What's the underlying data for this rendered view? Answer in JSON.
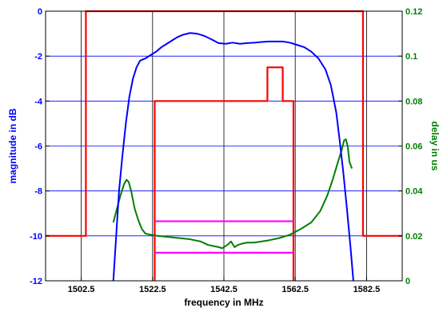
{
  "chart_data": {
    "type": "line",
    "title": "",
    "xlabel": "frequency in MHz",
    "ylabel_left": "magnitude in dB",
    "ylabel_right": "delay in us",
    "xlim": [
      1492.5,
      1592.5
    ],
    "ylim_left": [
      -12,
      0
    ],
    "ylim_right": [
      0,
      0.12
    ],
    "grid": true,
    "x_ticks": [
      1502.5,
      1522.5,
      1542.5,
      1562.5,
      1582.5
    ],
    "x_tick_labels": [
      "1502.5",
      "1522.5",
      "1542.5",
      "1562.5",
      "1582.5"
    ],
    "y_left_ticks": [
      0,
      -2,
      -4,
      -6,
      -8,
      -10,
      -12
    ],
    "y_left_tick_labels": [
      "0",
      "-2",
      "-4",
      "-6",
      "-8",
      "-10",
      "-12"
    ],
    "y_right_ticks": [
      0.12,
      0.1,
      0.08,
      0.06,
      0.04,
      0.02,
      0
    ],
    "y_right_tick_labels": [
      "0.12",
      "0.1",
      "0.08",
      "0.06",
      "0.04",
      "0.02",
      "0"
    ],
    "colors": {
      "magnitude": "#0000ff",
      "magnitude_mask": "#ff0000",
      "delay": "#007f00",
      "delay_mask": "#ff00ff",
      "left_axis_text": "#0000ff",
      "right_axis_text": "#007f00",
      "grid": "#000000"
    },
    "series": [
      {
        "key": "magnitude",
        "axis": "left",
        "x": [
          1511.5,
          1512.3,
          1513.1,
          1514.0,
          1515.0,
          1516.0,
          1517.0,
          1518.0,
          1519.0,
          1520.5,
          1522.0,
          1523.5,
          1525.0,
          1526.5,
          1528.0,
          1529.5,
          1531.0,
          1533.0,
          1535.0,
          1537.0,
          1539.0,
          1541.0,
          1543.0,
          1545.0,
          1547.0,
          1549.0,
          1551.0,
          1553.0,
          1555.0,
          1557.0,
          1559.0,
          1561.0,
          1563.0,
          1565.0,
          1567.0,
          1569.0,
          1571.0,
          1572.5,
          1574.0,
          1575.0,
          1576.0,
          1577.0,
          1578.0,
          1578.8
        ],
        "y": [
          -12.0,
          -10.0,
          -8.0,
          -6.5,
          -5.0,
          -3.8,
          -3.0,
          -2.5,
          -2.2,
          -2.1,
          -1.95,
          -1.8,
          -1.6,
          -1.45,
          -1.3,
          -1.15,
          -1.05,
          -0.97,
          -1.0,
          -1.1,
          -1.25,
          -1.42,
          -1.45,
          -1.4,
          -1.45,
          -1.42,
          -1.4,
          -1.37,
          -1.35,
          -1.35,
          -1.35,
          -1.4,
          -1.5,
          -1.6,
          -1.8,
          -2.1,
          -2.6,
          -3.3,
          -4.5,
          -5.8,
          -7.2,
          -8.8,
          -10.5,
          -12.0
        ]
      },
      {
        "key": "delay",
        "axis": "right",
        "x": [
          1511.5,
          1512.5,
          1513.5,
          1514.5,
          1515.2,
          1515.8,
          1516.5,
          1517.5,
          1518.5,
          1519.5,
          1520.5,
          1522.0,
          1524.0,
          1527.0,
          1530.0,
          1533.0,
          1536.0,
          1538.0,
          1539.5,
          1541.0,
          1542.0,
          1542.5,
          1543.5,
          1544.5,
          1545.5,
          1546.5,
          1547.5,
          1549.0,
          1551.0,
          1553.0,
          1555.0,
          1558.0,
          1561.0,
          1564.0,
          1567.0,
          1569.5,
          1571.5,
          1573.0,
          1574.5,
          1575.5,
          1576.2,
          1576.7,
          1577.2,
          1577.7,
          1578.4
        ],
        "y": [
          0.026,
          0.032,
          0.038,
          0.043,
          0.045,
          0.044,
          0.04,
          0.032,
          0.027,
          0.023,
          0.021,
          0.0205,
          0.02,
          0.0195,
          0.019,
          0.0185,
          0.0175,
          0.016,
          0.0155,
          0.015,
          0.0145,
          0.015,
          0.016,
          0.0175,
          0.015,
          0.016,
          0.0165,
          0.017,
          0.017,
          0.0175,
          0.018,
          0.019,
          0.0205,
          0.023,
          0.026,
          0.031,
          0.038,
          0.045,
          0.053,
          0.058,
          0.0625,
          0.063,
          0.06,
          0.053,
          0.05
        ]
      },
      {
        "key": "magnitude_mask_outer",
        "axis": "left",
        "step": true,
        "x": [
          1492.5,
          1503.8,
          1503.8,
          1581.5,
          1581.5,
          1592.5
        ],
        "y": [
          -10,
          -10,
          0,
          0,
          -10,
          -10
        ]
      },
      {
        "key": "magnitude_mask_inner",
        "axis": "left",
        "step": true,
        "x": [
          1523.1,
          1523.1,
          1554.7,
          1554.7,
          1559.0,
          1559.0,
          1562.0,
          1562.0
        ],
        "y": [
          -12,
          -4,
          -4,
          -2.5,
          -2.5,
          -4,
          -4,
          -12
        ]
      },
      {
        "key": "delay_mask_upper",
        "axis": "right",
        "x": [
          1523.1,
          1562.0
        ],
        "y": [
          0.0265,
          0.0265
        ]
      },
      {
        "key": "delay_mask_lower",
        "axis": "right",
        "x": [
          1523.1,
          1562.0
        ],
        "y": [
          0.0125,
          0.0125
        ]
      }
    ]
  }
}
